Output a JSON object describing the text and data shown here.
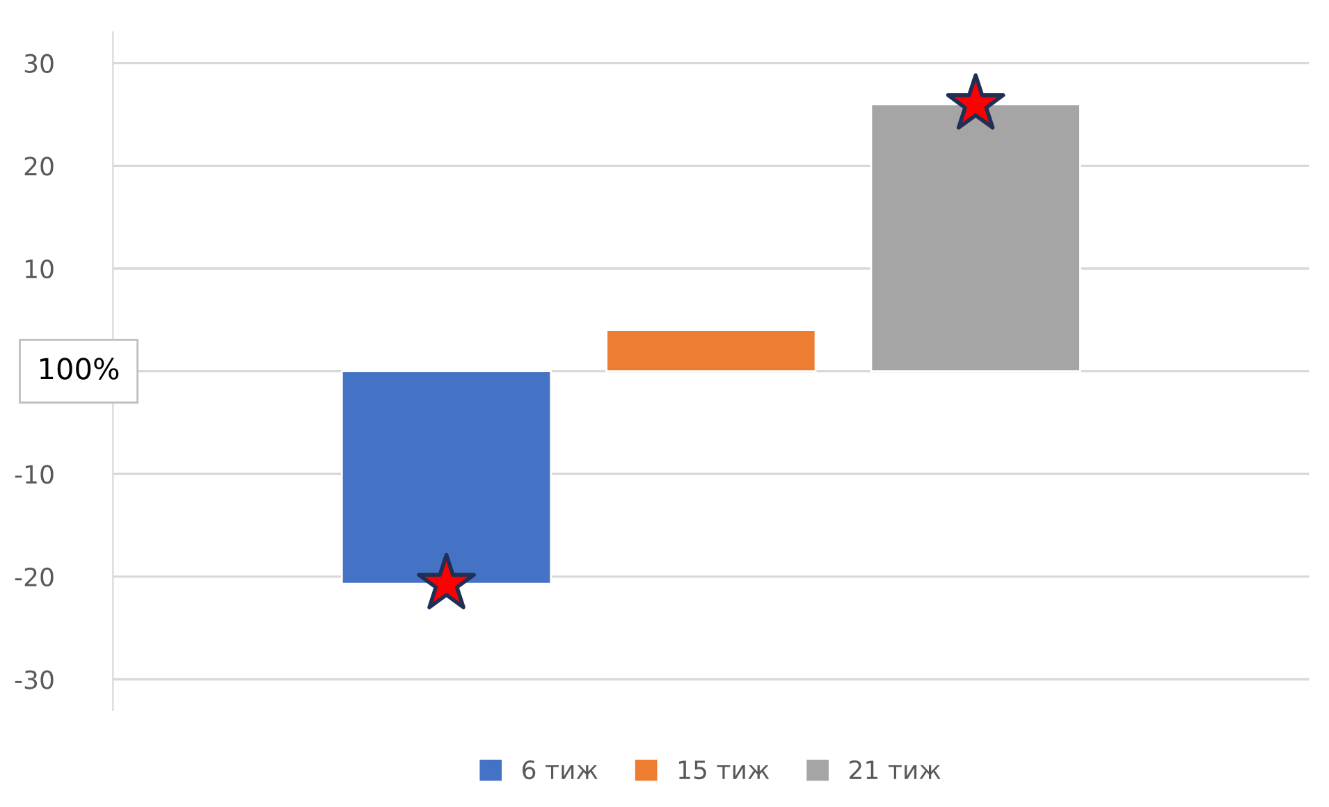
{
  "chart_data": {
    "type": "bar",
    "categories": [
      null,
      null,
      null
    ],
    "series": [
      {
        "name": "6 тиж",
        "color": "#4472c4",
        "values": [
          -20.7,
          null,
          null
        ]
      },
      {
        "name": "15 тиж",
        "color": "#ed7d31",
        "values": [
          null,
          4,
          null
        ]
      },
      {
        "name": "21 тиж",
        "color": "#a5a5a5",
        "values": [
          null,
          null,
          26
        ]
      },
      {
        "type": "scatter",
        "color": "#ff0000",
        "marker": "star",
        "values": [
          -20.7,
          null,
          26
        ]
      }
    ],
    "ylim": [
      -33,
      33
    ],
    "yticks": [
      -30,
      -20,
      -10,
      {
        "value": 0,
        "label": null
      },
      10,
      20,
      30
    ],
    "annotations": [
      "100%"
    ],
    "grid": "y",
    "legend": "bottom"
  }
}
